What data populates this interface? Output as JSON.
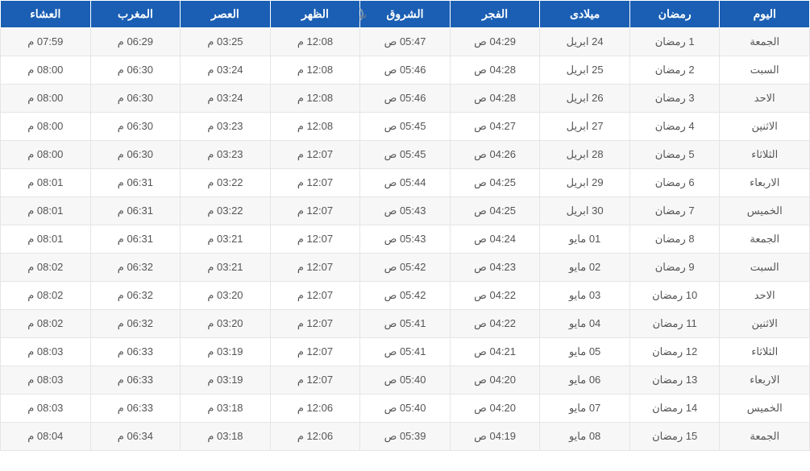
{
  "table": {
    "columns": [
      "اليوم",
      "رمضان",
      "ميلادى",
      "الفجر",
      "الشروق",
      "الظهر",
      "العصر",
      "المغرب",
      "العشاء"
    ],
    "rows": [
      [
        "الجمعة",
        "1 رمضان",
        "24 ابريل",
        "04:29 ص",
        "05:47 ص",
        "12:08 م",
        "03:25 م",
        "06:29 م",
        "07:59 م"
      ],
      [
        "السبت",
        "2 رمضان",
        "25 ابريل",
        "04:28 ص",
        "05:46 ص",
        "12:08 م",
        "03:24 م",
        "06:30 م",
        "08:00 م"
      ],
      [
        "الاحد",
        "3 رمضان",
        "26 ابريل",
        "04:28 ص",
        "05:46 ص",
        "12:08 م",
        "03:24 م",
        "06:30 م",
        "08:00 م"
      ],
      [
        "الاثنين",
        "4 رمضان",
        "27 ابريل",
        "04:27 ص",
        "05:45 ص",
        "12:08 م",
        "03:23 م",
        "06:30 م",
        "08:00 م"
      ],
      [
        "الثلاثاء",
        "5 رمضان",
        "28 ابريل",
        "04:26 ص",
        "05:45 ص",
        "12:07 م",
        "03:23 م",
        "06:30 م",
        "08:00 م"
      ],
      [
        "الاربعاء",
        "6 رمضان",
        "29 ابريل",
        "04:25 ص",
        "05:44 ص",
        "12:07 م",
        "03:22 م",
        "06:31 م",
        "08:01 م"
      ],
      [
        "الخميس",
        "7 رمضان",
        "30 ابريل",
        "04:25 ص",
        "05:43 ص",
        "12:07 م",
        "03:22 م",
        "06:31 م",
        "08:01 م"
      ],
      [
        "الجمعة",
        "8 رمضان",
        "01 مايو",
        "04:24 ص",
        "05:43 ص",
        "12:07 م",
        "03:21 م",
        "06:31 م",
        "08:01 م"
      ],
      [
        "السبت",
        "9 رمضان",
        "02 مايو",
        "04:23 ص",
        "05:42 ص",
        "12:07 م",
        "03:21 م",
        "06:32 م",
        "08:02 م"
      ],
      [
        "الاحد",
        "10 رمضان",
        "03 مايو",
        "04:22 ص",
        "05:42 ص",
        "12:07 م",
        "03:20 م",
        "06:32 م",
        "08:02 م"
      ],
      [
        "الاثنين",
        "11 رمضان",
        "04 مايو",
        "04:22 ص",
        "05:41 ص",
        "12:07 م",
        "03:20 م",
        "06:32 م",
        "08:02 م"
      ],
      [
        "الثلاثاء",
        "12 رمضان",
        "05 مايو",
        "04:21 ص",
        "05:41 ص",
        "12:07 م",
        "03:19 م",
        "06:33 م",
        "08:03 م"
      ],
      [
        "الاربعاء",
        "13 رمضان",
        "06 مايو",
        "04:20 ص",
        "05:40 ص",
        "12:07 م",
        "03:19 م",
        "06:33 م",
        "08:03 م"
      ],
      [
        "الخميس",
        "14 رمضان",
        "07 مايو",
        "04:20 ص",
        "05:40 ص",
        "12:06 م",
        "03:18 م",
        "06:33 م",
        "08:03 م"
      ],
      [
        "الجمعة",
        "15 رمضان",
        "08 مايو",
        "04:19 ص",
        "05:39 ص",
        "12:06 م",
        "03:18 م",
        "06:34 م",
        "08:04 م"
      ]
    ],
    "header_bg": "#1a5fb4",
    "header_text_color": "#ffffff",
    "row_odd_bg": "#f7f7f7",
    "row_even_bg": "#ffffff",
    "cell_text_color": "#555555",
    "border_color": "#e5e5e5",
    "font_size_header": 14,
    "font_size_cell": 13,
    "watermark_text": "سا"
  }
}
